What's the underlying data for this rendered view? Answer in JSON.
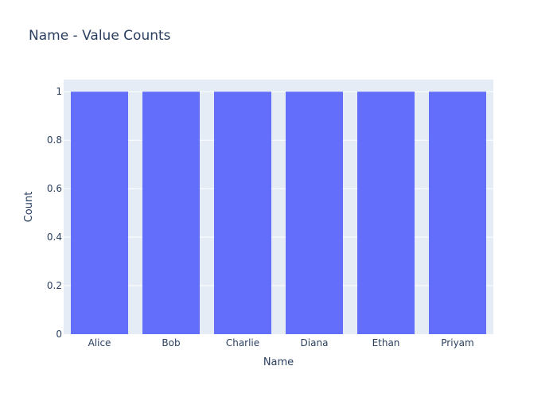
{
  "chart_data": {
    "type": "bar",
    "title": "Name - Value Counts",
    "xlabel": "Name",
    "ylabel": "Count",
    "categories": [
      "Alice",
      "Bob",
      "Charlie",
      "Diana",
      "Ethan",
      "Priyam"
    ],
    "values": [
      1,
      1,
      1,
      1,
      1,
      1
    ],
    "ylim": [
      0,
      1.05
    ],
    "yticks": [
      0,
      0.2,
      0.4,
      0.6,
      0.8,
      1
    ],
    "ytick_labels": [
      "0",
      "0.2",
      "0.4",
      "0.6",
      "0.8",
      "1"
    ],
    "grid": true,
    "legend": "none",
    "colors": {
      "bar": "#636efa",
      "plot_bg": "#e5ecf6",
      "grid": "#ffffff",
      "text": "#2a3f5f"
    }
  }
}
